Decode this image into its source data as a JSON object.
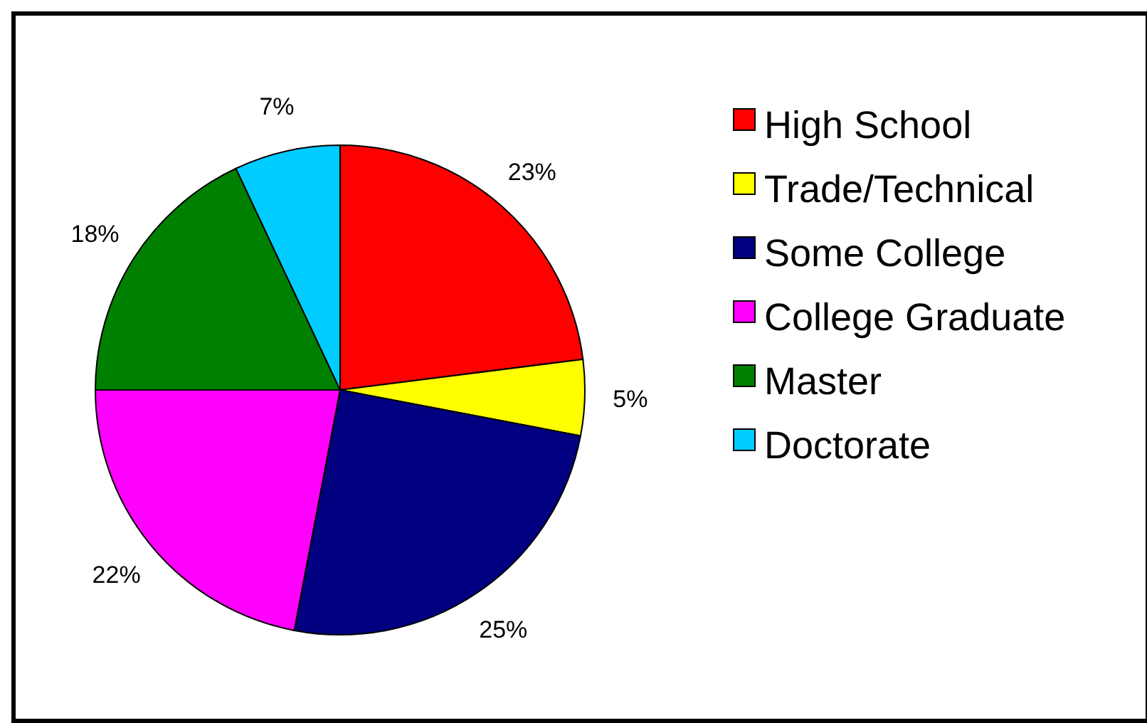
{
  "chart_data": {
    "type": "pie",
    "categories": [
      "High School",
      "Trade/Technical",
      "Some College",
      "College Graduate",
      "Master",
      "Doctorate"
    ],
    "values": [
      23,
      5,
      25,
      22,
      18,
      7
    ],
    "colors": [
      "#ff0000",
      "#ffff00",
      "#000080",
      "#ff00ff",
      "#008000",
      "#00ccff"
    ],
    "value_labels": [
      "23%",
      "5%",
      "25%",
      "22%",
      "18%",
      "7%"
    ],
    "legend": "right"
  }
}
